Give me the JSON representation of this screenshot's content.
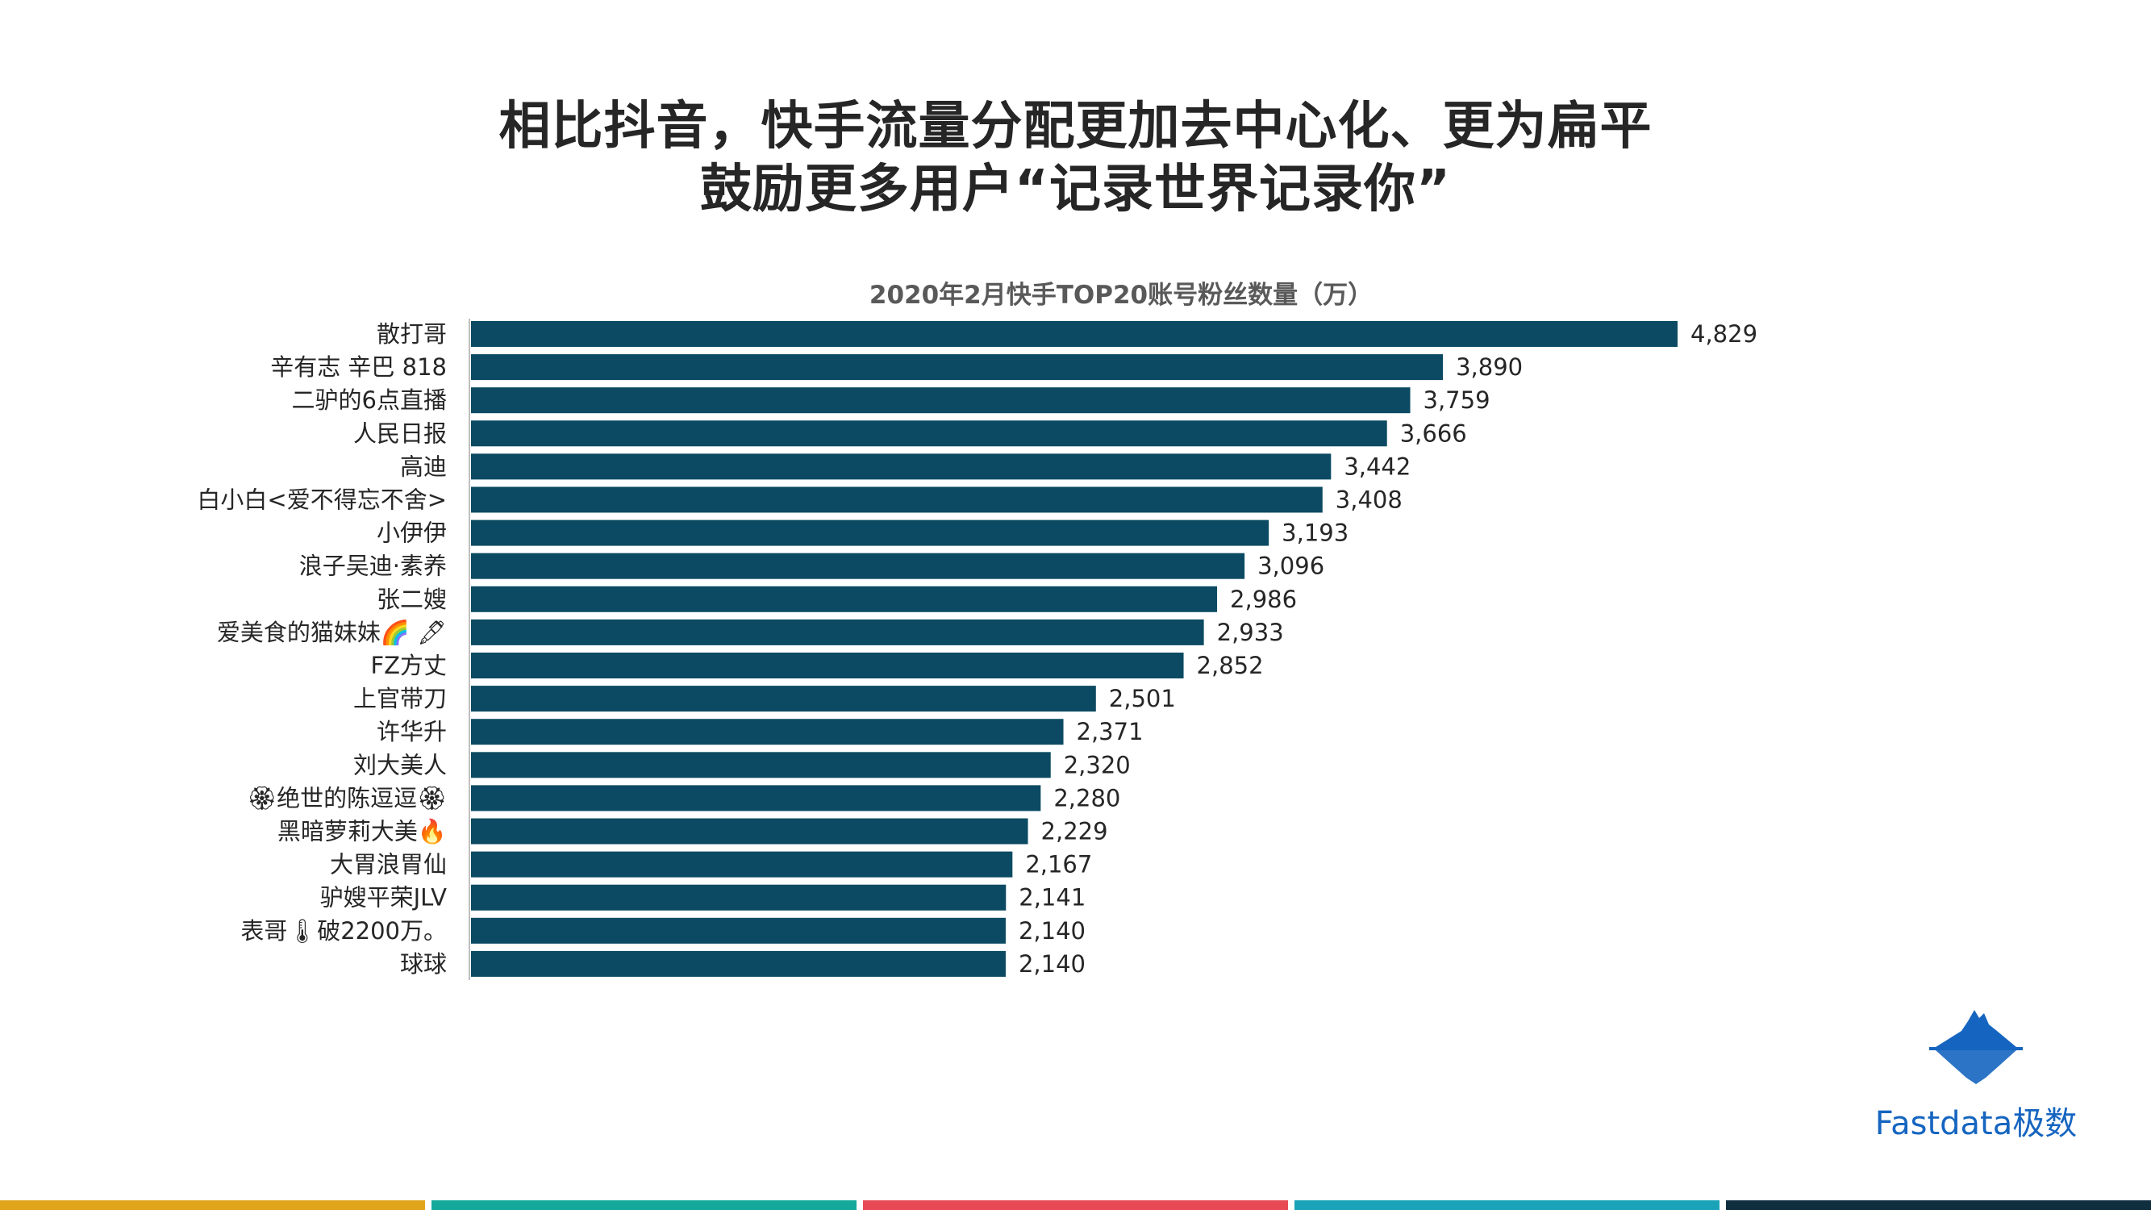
{
  "headline": {
    "line1": "相比抖音，快手流量分配更加去中心化、更为扁平",
    "line2": "鼓励更多用户“记录世界记录你”"
  },
  "chart_data": {
    "type": "bar",
    "orientation": "horizontal",
    "title": "2020年2月快手TOP20账号粉丝数量（万）",
    "categories": [
      "散打哥",
      "辛有志 辛巴 818",
      "二驴的6点直播",
      "人民日报",
      "高迪",
      "白小白<爱不得忘不舍>",
      "小伊伊",
      "浪子吴迪·素养",
      "张二嫂",
      "爱美食的猫妹妹🌈 🖋",
      "FZ方丈",
      "上官带刀",
      "许华升",
      "刘大美人",
      "🏵绝世的陈逗逗🏵",
      "黑暗萝莉大美🔥",
      "大胃浪胃仙",
      "驴嫂平荣JLV",
      "表哥🌡破2200万。",
      "球球"
    ],
    "values": [
      4829,
      3890,
      3759,
      3666,
      3442,
      3408,
      3193,
      3096,
      2986,
      2933,
      2852,
      2501,
      2371,
      2320,
      2280,
      2229,
      2167,
      2141,
      2140,
      2140
    ],
    "value_labels": [
      "4,829",
      "3,890",
      "3,759",
      "3,666",
      "3,442",
      "3,408",
      "3,193",
      "3,096",
      "2,986",
      "2,933",
      "2,852",
      "2,501",
      "2,371",
      "2,320",
      "2,280",
      "2,229",
      "2,167",
      "2,141",
      "2,140",
      "2,140"
    ],
    "xlim": [
      0,
      4829
    ],
    "bar_color": "#0b4a62",
    "grid": false,
    "legend": "none"
  },
  "brand": {
    "name": "Fastdata极数",
    "logo": "iceberg-logo",
    "color": "#1565c0"
  },
  "footer": {
    "stripe_colors": [
      "#e0a51b",
      "#14a99a",
      "#e84a55",
      "#1aa3b8",
      "#0f2f3f"
    ]
  }
}
